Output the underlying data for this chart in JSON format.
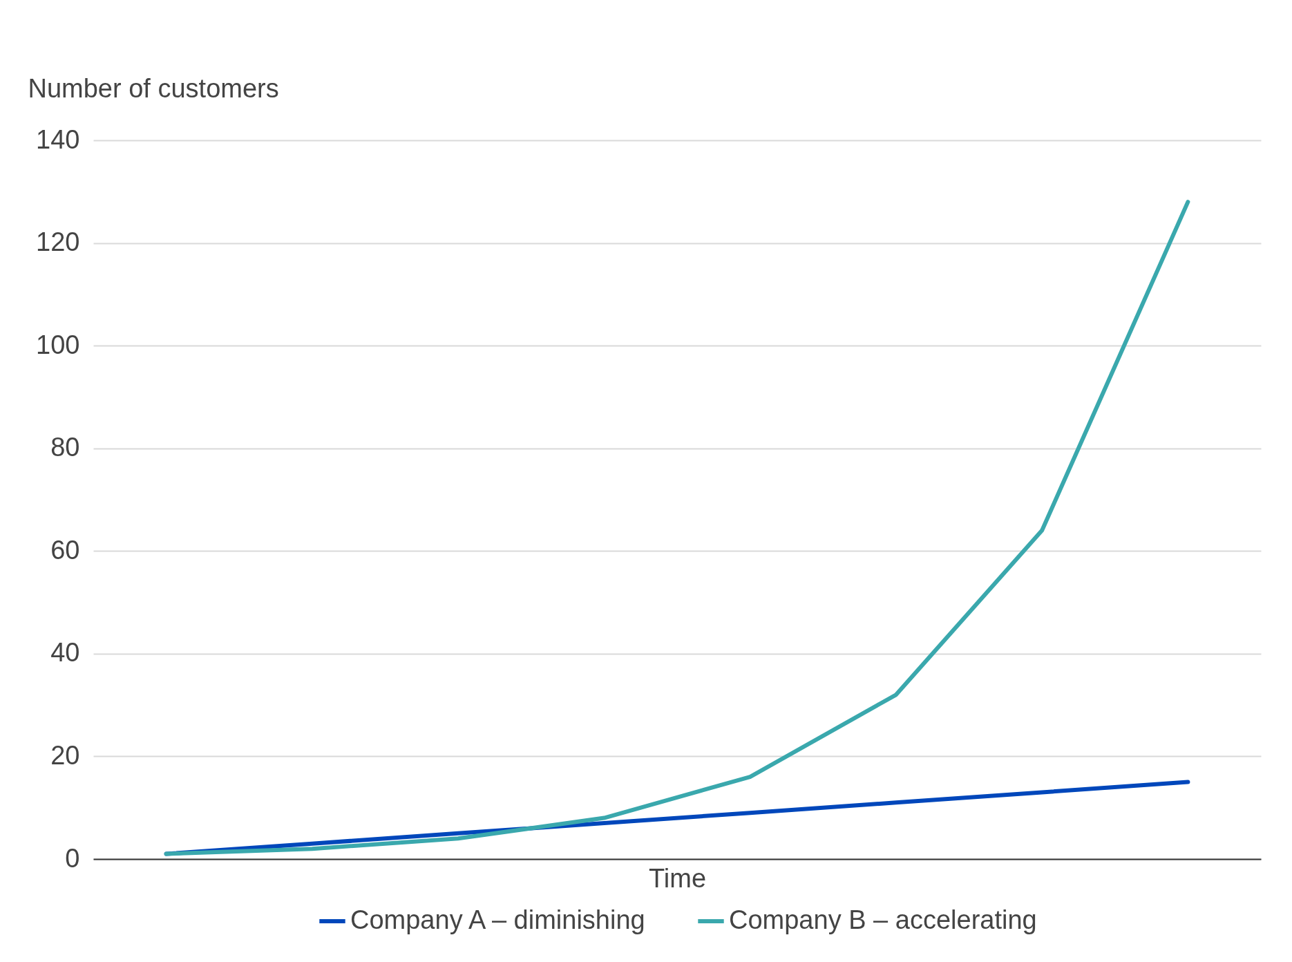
{
  "chart_data": {
    "type": "line",
    "xlabel": "Time",
    "ylabel": "Number of customers",
    "categories": [
      null,
      null,
      null,
      null,
      null,
      null,
      null,
      null
    ],
    "series": [
      {
        "name": "Company A – diminishing",
        "color": "#0047bb",
        "values": [
          1,
          3,
          5,
          7,
          9,
          11,
          13,
          15
        ]
      },
      {
        "name": "Company B – accelerating",
        "color": "#3aa8ad",
        "values": [
          1,
          2,
          4,
          8,
          16,
          32,
          64,
          128
        ]
      }
    ],
    "ylim": [
      0,
      140
    ],
    "yticks": [
      0,
      20,
      40,
      60,
      80,
      100,
      120,
      140
    ],
    "grid": "y",
    "legend": "bottom",
    "marker": "none",
    "line_style": "solid"
  }
}
